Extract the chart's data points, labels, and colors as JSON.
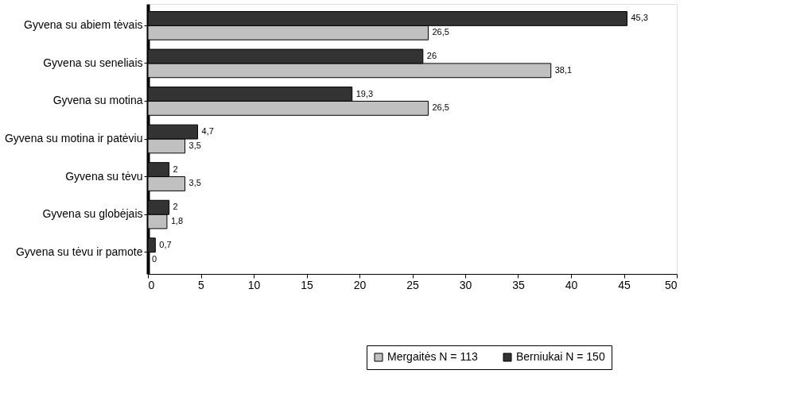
{
  "chart_data": {
    "type": "bar",
    "orientation": "horizontal",
    "categories": [
      "Gyvena su abiem tėvais",
      "Gyvena su seneliais",
      "Gyvena su motina",
      "Gyvena su motina ir patėviu",
      "Gyvena su tėvu",
      "Gyvena su globėjais",
      "Gyvena su tėvu ir pamote"
    ],
    "series": [
      {
        "name": "Mergaitės N = 113",
        "color": "#c0c0c0",
        "values": [
          26.5,
          38.1,
          26.5,
          3.5,
          3.5,
          1.8,
          0
        ],
        "value_labels": [
          "26,5",
          "38,1",
          "26,5",
          "3,5",
          "3,5",
          "1,8",
          "0"
        ]
      },
      {
        "name": "Berniukai N = 150",
        "color": "#333333",
        "values": [
          45.3,
          26,
          19.3,
          4.7,
          2,
          2,
          0.7
        ],
        "value_labels": [
          "45,3",
          "26",
          "19,3",
          "4,7",
          "2",
          "2",
          "0,7"
        ]
      }
    ],
    "xlim": [
      0,
      50
    ],
    "xticks": [
      0,
      5,
      10,
      15,
      20,
      25,
      30,
      35,
      40,
      45,
      50
    ],
    "grid": false,
    "legend": "bottom right"
  }
}
